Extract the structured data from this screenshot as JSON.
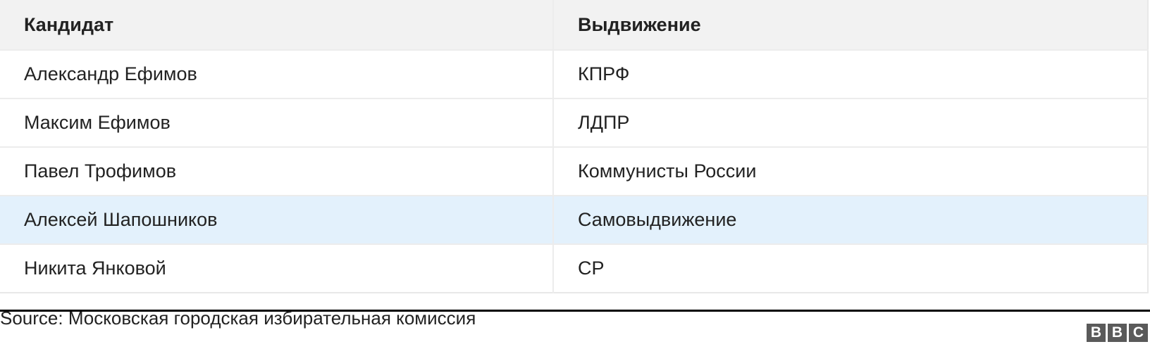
{
  "table": {
    "headers": [
      "Кандидат",
      "Выдвижение"
    ],
    "rows": [
      [
        "Александр Ефимов",
        "КПРФ"
      ],
      [
        "Максим Ефимов",
        "ЛДПР"
      ],
      [
        "Павел Трофимов",
        "Коммунисты России"
      ],
      [
        "Алексей Шапошников",
        "Самовыдвижение"
      ],
      [
        "Никита Янковой",
        "СР"
      ]
    ],
    "highlighted_row_index": 3,
    "highlight_color": "#e3f1fc",
    "header_bg": "#f2f2f2"
  },
  "footer": {
    "source": "Source: Московская городская избирательная комиссия",
    "logo": [
      "B",
      "B",
      "C"
    ]
  }
}
